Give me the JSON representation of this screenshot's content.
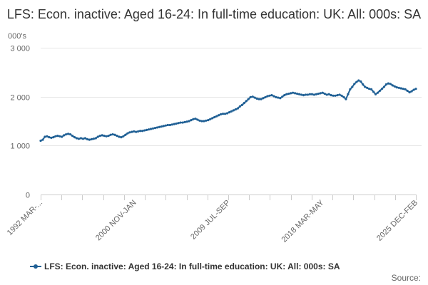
{
  "chart_data": {
    "type": "line",
    "title": "LFS: Econ. inactive: Aged 16-24: In full-time education: UK: All: 000s: SA",
    "ylabel": "000's",
    "xlabel": "",
    "ylim": [
      0,
      3000
    ],
    "y_ticks": [
      "0",
      "1 000",
      "2 000",
      "3 000"
    ],
    "x_tick_labels": [
      "1992 MAR-...",
      "2000 NOV-JAN",
      "2009 JUL-SEP",
      "2018 MAR-MAY",
      "2025 DEC-FEB"
    ],
    "grid": true,
    "legend_position": "bottom",
    "line_color": "#206095",
    "series": [
      {
        "name": "LFS: Econ. inactive: Aged 16-24: In full-time education: UK: All: 000s: SA",
        "start_period": "1992 MAR-MAY",
        "end_period": "2025 DEC-FEB",
        "values": [
          1100,
          1120,
          1180,
          1190,
          1170,
          1160,
          1170,
          1190,
          1200,
          1190,
          1180,
          1210,
          1230,
          1240,
          1230,
          1200,
          1170,
          1150,
          1140,
          1150,
          1140,
          1150,
          1130,
          1120,
          1130,
          1140,
          1150,
          1180,
          1200,
          1210,
          1200,
          1190,
          1200,
          1220,
          1230,
          1220,
          1200,
          1180,
          1170,
          1190,
          1220,
          1250,
          1270,
          1280,
          1290,
          1280,
          1290,
          1300,
          1300,
          1310,
          1320,
          1330,
          1340,
          1350,
          1360,
          1370,
          1380,
          1390,
          1400,
          1410,
          1420,
          1420,
          1430,
          1440,
          1450,
          1460,
          1470,
          1470,
          1480,
          1490,
          1500,
          1520,
          1540,
          1550,
          1530,
          1510,
          1500,
          1500,
          1510,
          1520,
          1540,
          1560,
          1580,
          1600,
          1620,
          1640,
          1650,
          1650,
          1660,
          1680,
          1700,
          1720,
          1740,
          1760,
          1800,
          1830,
          1870,
          1910,
          1950,
          1990,
          2000,
          1980,
          1960,
          1950,
          1950,
          1970,
          1990,
          2010,
          2020,
          2030,
          2010,
          1990,
          1980,
          1970,
          2000,
          2030,
          2050,
          2060,
          2070,
          2080,
          2070,
          2060,
          2050,
          2040,
          2030,
          2040,
          2040,
          2050,
          2050,
          2040,
          2050,
          2060,
          2070,
          2080,
          2060,
          2040,
          2050,
          2030,
          2020,
          2020,
          2030,
          2040,
          2020,
          1990,
          1950,
          2050,
          2150,
          2200,
          2260,
          2300,
          2330,
          2310,
          2250,
          2200,
          2180,
          2160,
          2150,
          2100,
          2050,
          2080,
          2120,
          2160,
          2200,
          2250,
          2270,
          2260,
          2230,
          2210,
          2190,
          2180,
          2170,
          2160,
          2150,
          2120,
          2090,
          2110,
          2140,
          2160
        ]
      }
    ]
  },
  "credits": "Source:"
}
